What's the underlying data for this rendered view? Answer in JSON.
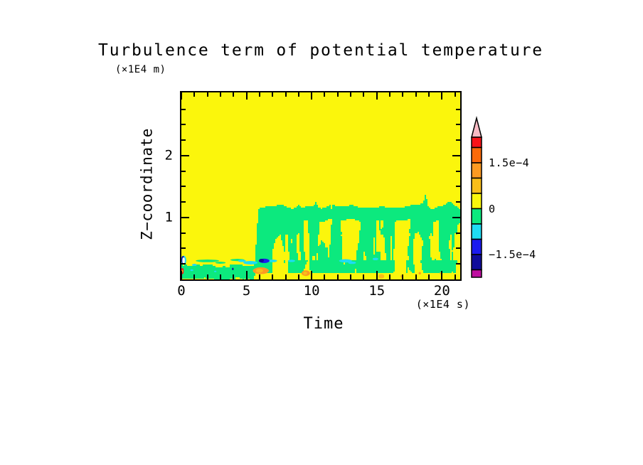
{
  "page": {
    "background": "#ffffff"
  },
  "chart_data": {
    "type": "filled_contour",
    "title": "Turbulence term of potential temperature",
    "xlabel": "Time",
    "ylabel": "Z−coordinate",
    "x_units": "(×1E4 s)",
    "y_units": "(×1E4 m)",
    "xlim": [
      0,
      21.4
    ],
    "ylim": [
      0,
      3.02
    ],
    "x_major_ticks": [
      {
        "value": 0,
        "label": "0"
      },
      {
        "value": 5,
        "label": "5"
      },
      {
        "value": 10,
        "label": "10"
      },
      {
        "value": 15,
        "label": "15"
      },
      {
        "value": 20,
        "label": "20"
      }
    ],
    "x_minor_step": 1,
    "y_major_ticks": [
      {
        "value": 1,
        "label": "1"
      },
      {
        "value": 2,
        "label": "2"
      }
    ],
    "y_minor_step": 0.25,
    "palette": {
      "pink": "#f8bac4",
      "red": "#f91419",
      "orangered": "#fb6a0a",
      "orange": "#fc9a22",
      "amber": "#f9bd19",
      "yellow": "#fbf60c",
      "green": "#0ce97e",
      "cyan": "#1fdcf4",
      "blue": "#1b1bef",
      "navy": "#0f0c9b",
      "magenta": "#be0fa0",
      "white": "#ffffff"
    },
    "colorbar": {
      "value_scale": "1e-4",
      "overflow_arrow_color": "#f8bac4",
      "display_range": [
        -2.24,
        2.34
      ],
      "segments": [
        {
          "color": "#f91419",
          "min": 2.0,
          "max": 2.5
        },
        {
          "color": "#fb6a0a",
          "min": 1.5,
          "max": 2.0
        },
        {
          "color": "#fc9a22",
          "min": 1.0,
          "max": 1.5
        },
        {
          "color": "#f9bd19",
          "min": 0.5,
          "max": 1.0
        },
        {
          "color": "#fbf60c",
          "min": 0.0,
          "max": 0.5
        },
        {
          "color": "#0ce97e",
          "min": -0.5,
          "max": 0.0
        },
        {
          "color": "#1fdcf4",
          "min": -1.0,
          "max": -0.5
        },
        {
          "color": "#1b1bef",
          "min": -1.5,
          "max": -1.0
        },
        {
          "color": "#0f0c9b",
          "min": -2.0,
          "max": -1.5
        },
        {
          "color": "#be0fa0",
          "min": -2.5,
          "max": -2.0
        }
      ],
      "ticks": [
        {
          "value": 1.5,
          "label": "1.5e−4"
        },
        {
          "value": 0,
          "label": "0"
        },
        {
          "value": -1.5,
          "label": "−1.5e−4"
        }
      ]
    },
    "field": {
      "background_band": "0 to 0.5e-4 (yellow)",
      "turbulent_band": "-0.5e-4 to 0 (green)",
      "surface_layer": {
        "t_end": 5.55,
        "z_base": 0.055,
        "z_top_mean": 0.24,
        "z_top_var": 0.09
      },
      "mixed_layer": {
        "t_start": 5.55,
        "t_ramp_end": 6.0,
        "top_mean": 1.18,
        "top_var": 0.05,
        "cap_band_depth": 0.22
      },
      "spikes": [
        {
          "t": 9.0,
          "h": 0.05,
          "w": 0.1
        },
        {
          "t": 10.35,
          "h": 0.07,
          "w": 0.12
        },
        {
          "t": 18.75,
          "h": 0.18,
          "w": 0.13
        },
        {
          "t": 20.6,
          "h": 0.06,
          "w": 0.25
        }
      ],
      "features": [
        {
          "t": 2.0,
          "z": 0.3,
          "rt": 0.9,
          "rz": 0.022,
          "color": "green"
        },
        {
          "t": 4.3,
          "z": 0.315,
          "rt": 0.55,
          "rz": 0.018,
          "color": "green"
        },
        {
          "t": 3.0,
          "z": 0.27,
          "rt": 0.4,
          "rz": 0.016,
          "color": "green"
        },
        {
          "t": 0.8,
          "z": 0.15,
          "rt": 0.12,
          "rz": 0.015,
          "color": "cyan"
        },
        {
          "t": 2.6,
          "z": 0.13,
          "rt": 0.1,
          "rz": 0.012,
          "color": "cyan"
        },
        {
          "t": 3.95,
          "z": 0.17,
          "rt": 0.06,
          "rz": 0.02,
          "color": "navy"
        },
        {
          "t": 1.0,
          "z": 0.235,
          "rt": 0.18,
          "rz": 0.018,
          "color": "cyan"
        },
        {
          "t": 4.65,
          "z": 0.3,
          "rt": 0.3,
          "rz": 0.02,
          "color": "cyan"
        },
        {
          "t": 5.3,
          "z": 0.27,
          "rt": 0.55,
          "rz": 0.028,
          "color": "cyan"
        },
        {
          "t": 7.0,
          "z": 0.3,
          "rt": 0.35,
          "rz": 0.022,
          "color": "cyan"
        },
        {
          "t": 8.45,
          "z": 0.3,
          "rt": 0.28,
          "rz": 0.02,
          "color": "cyan"
        },
        {
          "t": 12.6,
          "z": 0.3,
          "rt": 0.5,
          "rz": 0.028,
          "color": "cyan"
        },
        {
          "t": 13.1,
          "z": 0.27,
          "rt": 0.3,
          "rz": 0.02,
          "color": "cyan"
        },
        {
          "t": 14.9,
          "z": 0.33,
          "rt": 0.22,
          "rz": 0.02,
          "color": "cyan"
        },
        {
          "t": 6.35,
          "z": 0.3,
          "rt": 0.42,
          "rz": 0.035,
          "color": "blue"
        },
        {
          "t": 6.15,
          "z": 0.305,
          "rt": 0.18,
          "rz": 0.028,
          "color": "navy"
        },
        {
          "t": 6.1,
          "z": 0.14,
          "rt": 0.62,
          "rz": 0.055,
          "color": "orange"
        },
        {
          "t": 6.0,
          "z": 0.14,
          "rt": 0.28,
          "rz": 0.032,
          "color": "amber"
        },
        {
          "t": 9.55,
          "z": 0.1,
          "rt": 0.33,
          "rz": 0.045,
          "color": "orange"
        },
        {
          "t": 9.5,
          "z": 0.1,
          "rt": 0.15,
          "rz": 0.025,
          "color": "amber"
        },
        {
          "t": 15.35,
          "z": 0.05,
          "rt": 0.22,
          "rz": 0.035,
          "color": "amber"
        },
        {
          "t": 18.3,
          "z": 0.1,
          "rt": 0.09,
          "rz": 0.02,
          "color": "orange"
        },
        {
          "t": 16.9,
          "z": 0.05,
          "rt": 0.1,
          "rz": 0.02,
          "color": "amber"
        },
        {
          "t": 19.9,
          "z": 0.1,
          "rt": 0.08,
          "rz": 0.018,
          "color": "amber"
        },
        {
          "t": 0.18,
          "z": 0.31,
          "rt": 0.2,
          "rz": 0.075,
          "color": "cyan"
        },
        {
          "t": 0.12,
          "z": 0.32,
          "rt": 0.11,
          "rz": 0.06,
          "color": "navy"
        },
        {
          "t": 0.17,
          "z": 0.305,
          "rt": 0.095,
          "rz": 0.05,
          "color": "white"
        },
        {
          "t": 0.08,
          "z": 0.135,
          "rt": 0.1,
          "rz": 0.05,
          "color": "red"
        },
        {
          "t": 0.08,
          "z": 0.135,
          "rt": 0.045,
          "rz": 0.022,
          "color": "amber"
        }
      ]
    }
  }
}
